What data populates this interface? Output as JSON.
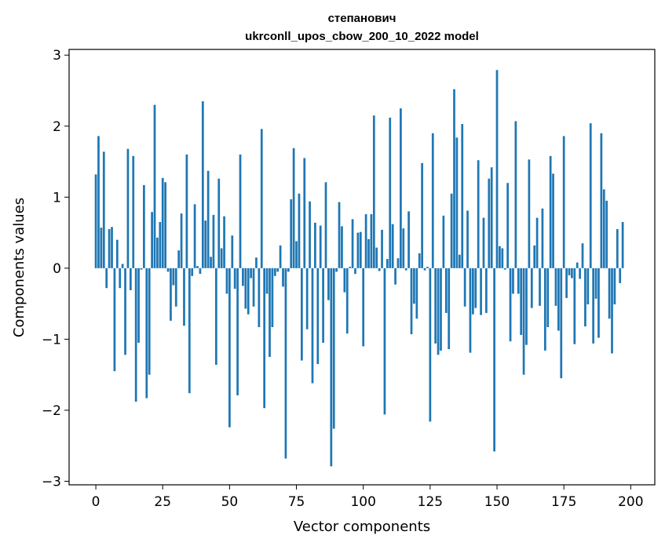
{
  "chart_data": {
    "type": "bar",
    "title": "степанович",
    "subtitle": "ukrconll_upos_cbow_200_10_2022 model",
    "xlabel": "Vector components",
    "ylabel": "Components values",
    "xlim": [
      -10,
      209
    ],
    "ylim": [
      -3.05,
      3.08
    ],
    "x_ticks": [
      0,
      25,
      50,
      75,
      100,
      125,
      150,
      175,
      200
    ],
    "x_tick_labels": [
      "0",
      "25",
      "50",
      "75",
      "100",
      "125",
      "150",
      "175",
      "200"
    ],
    "y_ticks": [
      -3,
      -2,
      -1,
      0,
      1,
      2,
      3
    ],
    "y_tick_labels": [
      "−3",
      "−2",
      "−1",
      "0",
      "1",
      "2",
      "3"
    ],
    "bar_color": "#1f77b4",
    "grid": false,
    "values": [
      1.32,
      1.86,
      0.57,
      1.64,
      -0.28,
      0.55,
      0.58,
      -1.45,
      0.4,
      -0.28,
      0.06,
      -1.22,
      1.68,
      -0.31,
      1.58,
      -1.88,
      -1.05,
      -0.02,
      1.17,
      -1.83,
      -1.5,
      0.79,
      2.3,
      0.43,
      0.65,
      1.27,
      1.21,
      -0.05,
      -0.74,
      -0.24,
      -0.54,
      0.25,
      0.77,
      -0.81,
      1.6,
      -1.76,
      -0.11,
      0.9,
      0.03,
      -0.08,
      2.35,
      0.67,
      1.37,
      0.16,
      0.75,
      -1.36,
      1.26,
      0.28,
      0.73,
      -0.36,
      -2.24,
      0.46,
      -0.29,
      -1.79,
      1.6,
      -0.25,
      -0.57,
      -0.65,
      -0.14,
      -0.54,
      0.15,
      -0.83,
      1.96,
      -1.97,
      -0.36,
      -1.25,
      -0.83,
      -0.11,
      -0.05,
      0.32,
      -0.26,
      -2.68,
      -0.05,
      0.97,
      1.69,
      0.38,
      1.05,
      -1.3,
      1.55,
      -0.86,
      0.94,
      -1.62,
      0.64,
      -1.35,
      0.6,
      -1.05,
      1.21,
      -0.45,
      -2.79,
      -2.26,
      -0.05,
      0.93,
      0.59,
      -0.34,
      -0.92,
      0.02,
      0.69,
      -0.08,
      0.5,
      0.51,
      -1.1,
      0.76,
      0.41,
      0.76,
      2.15,
      0.29,
      -0.04,
      0.54,
      -2.06,
      0.13,
      2.12,
      0.62,
      -0.23,
      0.14,
      2.25,
      0.56,
      -0.03,
      0.8,
      -0.93,
      -0.5,
      -0.71,
      0.21,
      1.48,
      -0.03,
      0.02,
      -2.16,
      1.9,
      -1.06,
      -1.22,
      -1.16,
      0.74,
      -0.63,
      -1.14,
      1.05,
      2.52,
      1.84,
      0.19,
      2.03,
      -0.54,
      0.81,
      -1.19,
      -0.65,
      -0.56,
      1.52,
      -0.66,
      0.71,
      -0.63,
      1.26,
      1.42,
      -2.58,
      2.79,
      0.31,
      0.28,
      -0.02,
      1.2,
      -1.03,
      -0.36,
      2.07,
      -0.36,
      -0.94,
      -1.5,
      -1.08,
      1.53,
      -0.56,
      0.32,
      0.71,
      -0.53,
      0.84,
      -1.16,
      -0.83,
      1.58,
      1.33,
      -0.53,
      -0.88,
      -1.55,
      1.86,
      -0.42,
      -0.1,
      -0.14,
      -1.07,
      0.08,
      -0.15,
      0.35,
      -0.82,
      -0.51,
      2.04,
      -1.06,
      -0.43,
      -0.98,
      1.9,
      1.11,
      0.95,
      -0.71,
      -1.2,
      -0.51,
      0.55,
      -0.21,
      0.65
    ]
  }
}
